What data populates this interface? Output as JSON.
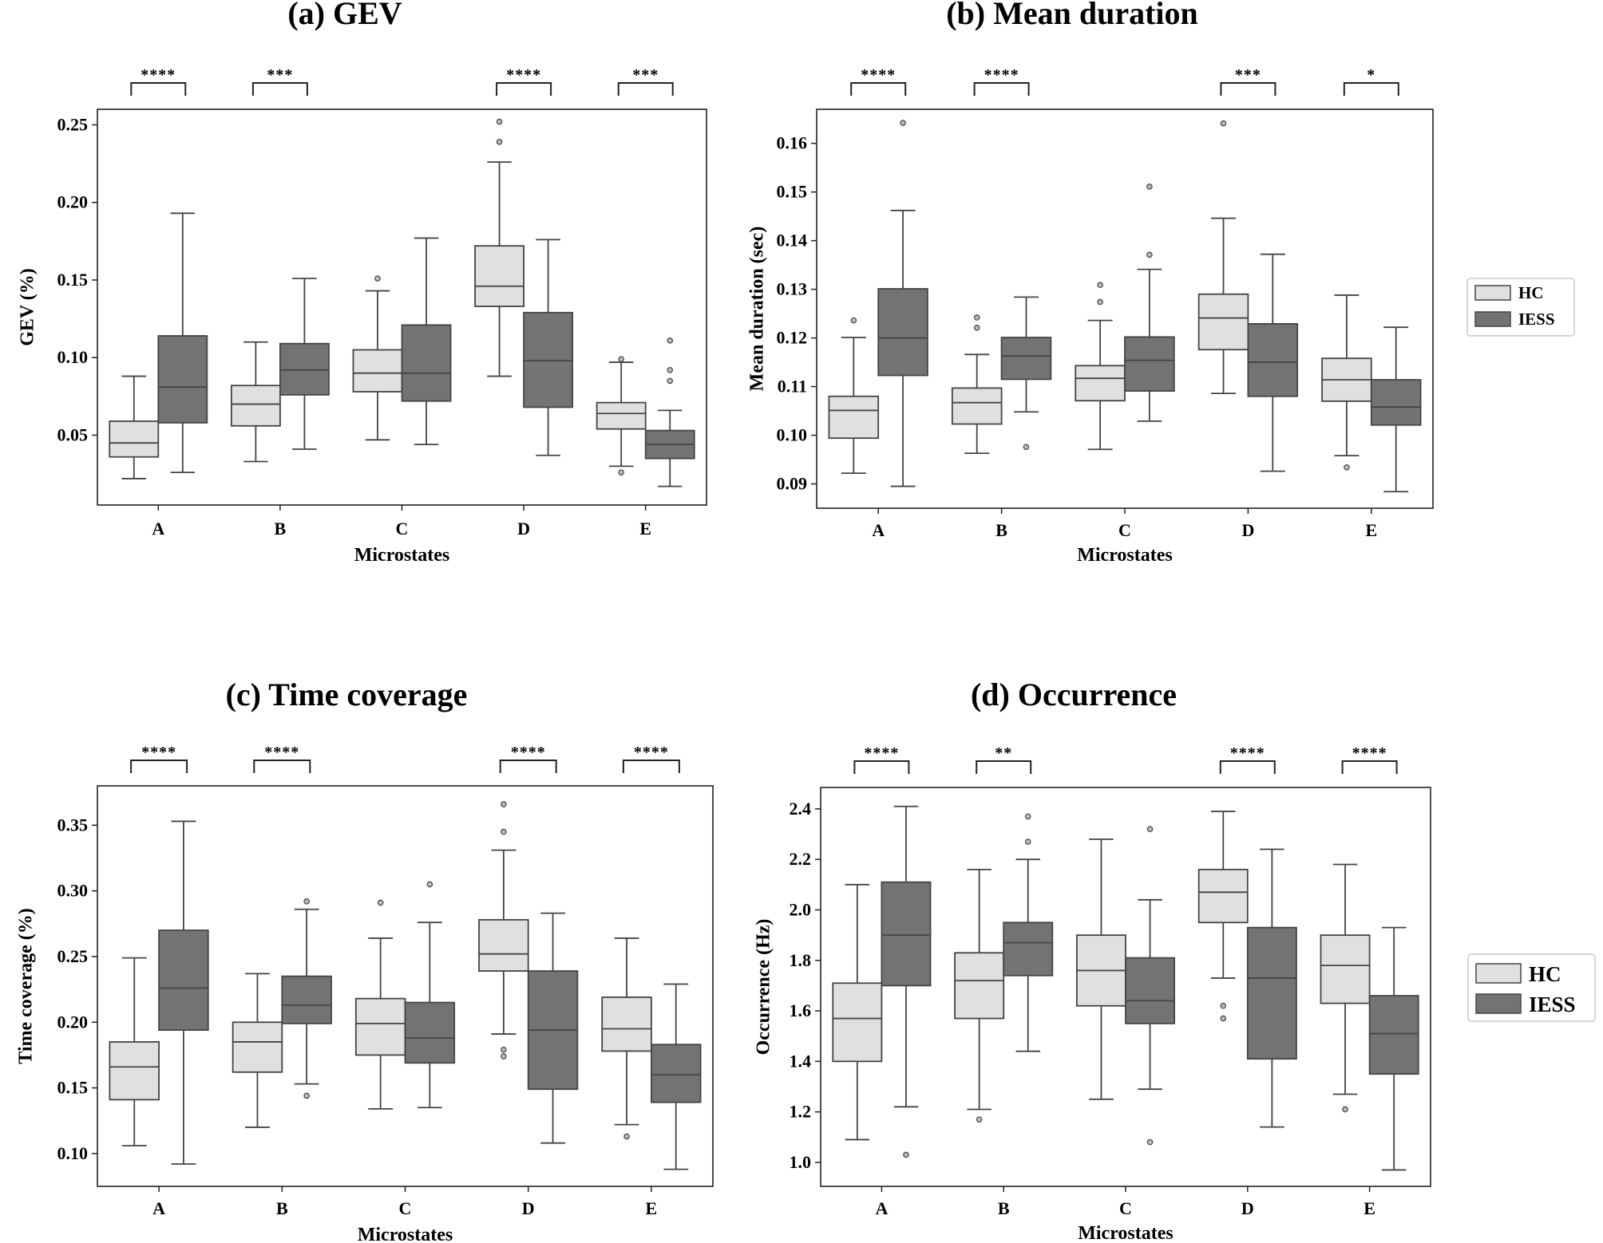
{
  "figure": {
    "groups": [
      "HC",
      "IESS"
    ],
    "colors": {
      "HC": "#e0e0e0",
      "IESS": "#737373",
      "line": "#444444"
    }
  },
  "chart_data": [
    {
      "type": "box",
      "title": "(a) GEV",
      "xlabel": "Microstates",
      "ylabel": "GEV (%)",
      "categories": [
        "A",
        "B",
        "C",
        "D",
        "E"
      ],
      "ylim": [
        0.005,
        0.26
      ],
      "yticks": [
        0.05,
        0.1,
        0.15,
        0.2,
        0.25
      ],
      "yticklabels": [
        "0.05",
        "0.10",
        "0.15",
        "0.20",
        "0.25"
      ],
      "significance": [
        "****",
        "***",
        "",
        "****",
        "***"
      ],
      "legend": "none",
      "series": [
        {
          "name": "HC",
          "boxes": [
            {
              "whislo": 0.022,
              "q1": 0.036,
              "med": 0.045,
              "q3": 0.059,
              "whishi": 0.088,
              "fliers": []
            },
            {
              "whislo": 0.033,
              "q1": 0.056,
              "med": 0.07,
              "q3": 0.082,
              "whishi": 0.11,
              "fliers": []
            },
            {
              "whislo": 0.047,
              "q1": 0.078,
              "med": 0.09,
              "q3": 0.105,
              "whishi": 0.143,
              "fliers": [
                0.151
              ]
            },
            {
              "whislo": 0.088,
              "q1": 0.133,
              "med": 0.146,
              "q3": 0.172,
              "whishi": 0.226,
              "fliers": [
                0.239,
                0.252
              ]
            },
            {
              "whislo": 0.03,
              "q1": 0.054,
              "med": 0.064,
              "q3": 0.071,
              "whishi": 0.097,
              "fliers": [
                0.026,
                0.099
              ]
            }
          ]
        },
        {
          "name": "IESS",
          "boxes": [
            {
              "whislo": 0.026,
              "q1": 0.058,
              "med": 0.081,
              "q3": 0.114,
              "whishi": 0.193,
              "fliers": []
            },
            {
              "whislo": 0.041,
              "q1": 0.076,
              "med": 0.092,
              "q3": 0.109,
              "whishi": 0.151,
              "fliers": []
            },
            {
              "whislo": 0.044,
              "q1": 0.072,
              "med": 0.09,
              "q3": 0.121,
              "whishi": 0.177,
              "fliers": []
            },
            {
              "whislo": 0.037,
              "q1": 0.068,
              "med": 0.098,
              "q3": 0.129,
              "whishi": 0.176,
              "fliers": []
            },
            {
              "whislo": 0.017,
              "q1": 0.035,
              "med": 0.044,
              "q3": 0.053,
              "whishi": 0.066,
              "fliers": [
                0.085,
                0.092,
                0.111
              ]
            }
          ]
        }
      ]
    },
    {
      "type": "box",
      "title": "(b) Mean duration",
      "xlabel": "Microstates",
      "ylabel": "Mean duration (sec)",
      "categories": [
        "A",
        "B",
        "C",
        "D",
        "E"
      ],
      "ylim": [
        0.085,
        0.167
      ],
      "yticks": [
        0.09,
        0.1,
        0.11,
        0.12,
        0.13,
        0.14,
        0.15,
        0.16
      ],
      "yticklabels": [
        "0.09",
        "0.10",
        "0.11",
        "0.12",
        "0.13",
        "0.14",
        "0.15",
        "0.16"
      ],
      "significance": [
        "****",
        "****",
        "",
        "***",
        "*"
      ],
      "legend": "outside-right",
      "legend_size": "small",
      "series": [
        {
          "name": "HC",
          "boxes": [
            {
              "whislo": 0.0922,
              "q1": 0.0994,
              "med": 0.1051,
              "q3": 0.108,
              "whishi": 0.1201,
              "fliers": [
                0.1236
              ]
            },
            {
              "whislo": 0.0963,
              "q1": 0.1023,
              "med": 0.1067,
              "q3": 0.1097,
              "whishi": 0.1166,
              "fliers": [
                0.1221,
                0.1242
              ]
            },
            {
              "whislo": 0.0971,
              "q1": 0.1071,
              "med": 0.1117,
              "q3": 0.1143,
              "whishi": 0.1236,
              "fliers": [
                0.1274,
                0.1309
              ]
            },
            {
              "whislo": 0.1086,
              "q1": 0.1176,
              "med": 0.1241,
              "q3": 0.129,
              "whishi": 0.1446,
              "fliers": [
                0.1641
              ]
            },
            {
              "whislo": 0.0958,
              "q1": 0.107,
              "med": 0.1114,
              "q3": 0.1158,
              "whishi": 0.1288,
              "fliers": [
                0.0934
              ]
            }
          ]
        },
        {
          "name": "IESS",
          "boxes": [
            {
              "whislo": 0.0895,
              "q1": 0.1123,
              "med": 0.12,
              "q3": 0.1301,
              "whishi": 0.1462,
              "fliers": [
                0.1642
              ]
            },
            {
              "whislo": 0.1048,
              "q1": 0.1115,
              "med": 0.1163,
              "q3": 0.1201,
              "whishi": 0.1284,
              "fliers": [
                0.0976
              ]
            },
            {
              "whislo": 0.1029,
              "q1": 0.1091,
              "med": 0.1154,
              "q3": 0.1202,
              "whishi": 0.1341,
              "fliers": [
                0.1371,
                0.1511
              ]
            },
            {
              "whislo": 0.0926,
              "q1": 0.108,
              "med": 0.115,
              "q3": 0.1229,
              "whishi": 0.1372,
              "fliers": []
            },
            {
              "whislo": 0.0884,
              "q1": 0.1021,
              "med": 0.1058,
              "q3": 0.1114,
              "whishi": 0.1222,
              "fliers": []
            }
          ]
        }
      ]
    },
    {
      "type": "box",
      "title": "(c) Time coverage",
      "xlabel": "Microstates",
      "ylabel": "Time coverage (%)",
      "categories": [
        "A",
        "B",
        "C",
        "D",
        "E"
      ],
      "ylim": [
        0.075,
        0.38
      ],
      "yticks": [
        0.1,
        0.15,
        0.2,
        0.25,
        0.3,
        0.35
      ],
      "yticklabels": [
        "0.10",
        "0.15",
        "0.20",
        "0.25",
        "0.30",
        "0.35"
      ],
      "significance": [
        "****",
        "****",
        "",
        "****",
        "****"
      ],
      "legend": "none",
      "series": [
        {
          "name": "HC",
          "boxes": [
            {
              "whislo": 0.106,
              "q1": 0.141,
              "med": 0.166,
              "q3": 0.185,
              "whishi": 0.249,
              "fliers": []
            },
            {
              "whislo": 0.12,
              "q1": 0.162,
              "med": 0.185,
              "q3": 0.2,
              "whishi": 0.237,
              "fliers": []
            },
            {
              "whislo": 0.134,
              "q1": 0.175,
              "med": 0.199,
              "q3": 0.218,
              "whishi": 0.264,
              "fliers": [
                0.291
              ]
            },
            {
              "whislo": 0.191,
              "q1": 0.239,
              "med": 0.252,
              "q3": 0.278,
              "whishi": 0.331,
              "fliers": [
                0.174,
                0.179,
                0.345,
                0.366
              ]
            },
            {
              "whislo": 0.122,
              "q1": 0.178,
              "med": 0.195,
              "q3": 0.219,
              "whishi": 0.264,
              "fliers": [
                0.113
              ]
            }
          ]
        },
        {
          "name": "IESS",
          "boxes": [
            {
              "whislo": 0.092,
              "q1": 0.194,
              "med": 0.226,
              "q3": 0.27,
              "whishi": 0.353,
              "fliers": []
            },
            {
              "whislo": 0.153,
              "q1": 0.199,
              "med": 0.213,
              "q3": 0.235,
              "whishi": 0.286,
              "fliers": [
                0.144,
                0.292
              ]
            },
            {
              "whislo": 0.135,
              "q1": 0.169,
              "med": 0.188,
              "q3": 0.215,
              "whishi": 0.276,
              "fliers": [
                0.305
              ]
            },
            {
              "whislo": 0.108,
              "q1": 0.149,
              "med": 0.194,
              "q3": 0.239,
              "whishi": 0.283,
              "fliers": []
            },
            {
              "whislo": 0.088,
              "q1": 0.139,
              "med": 0.16,
              "q3": 0.183,
              "whishi": 0.229,
              "fliers": []
            }
          ]
        }
      ]
    },
    {
      "type": "box",
      "title": "(d) Occurrence",
      "xlabel": "Microstates",
      "ylabel": "Occurrence (Hz)",
      "categories": [
        "A",
        "B",
        "C",
        "D",
        "E"
      ],
      "ylim": [
        0.905,
        2.485
      ],
      "yticks": [
        1.0,
        1.2,
        1.4,
        1.6,
        1.8,
        2.0,
        2.2,
        2.4
      ],
      "yticklabels": [
        "1.0",
        "1.2",
        "1.4",
        "1.6",
        "1.8",
        "2.0",
        "2.2",
        "2.4"
      ],
      "significance": [
        "****",
        "**",
        "",
        "****",
        "****"
      ],
      "legend": "outside-right",
      "legend_size": "large",
      "series": [
        {
          "name": "HC",
          "boxes": [
            {
              "whislo": 1.09,
              "q1": 1.4,
              "med": 1.57,
              "q3": 1.71,
              "whishi": 2.1,
              "fliers": []
            },
            {
              "whislo": 1.21,
              "q1": 1.57,
              "med": 1.72,
              "q3": 1.83,
              "whishi": 2.16,
              "fliers": [
                1.17
              ]
            },
            {
              "whislo": 1.25,
              "q1": 1.62,
              "med": 1.76,
              "q3": 1.9,
              "whishi": 2.28,
              "fliers": []
            },
            {
              "whislo": 1.73,
              "q1": 1.95,
              "med": 2.07,
              "q3": 2.16,
              "whishi": 2.39,
              "fliers": [
                1.57,
                1.62
              ]
            },
            {
              "whislo": 1.27,
              "q1": 1.63,
              "med": 1.78,
              "q3": 1.9,
              "whishi": 2.18,
              "fliers": [
                1.21
              ]
            }
          ]
        },
        {
          "name": "IESS",
          "boxes": [
            {
              "whislo": 1.22,
              "q1": 1.7,
              "med": 1.9,
              "q3": 2.11,
              "whishi": 2.41,
              "fliers": [
                1.03
              ]
            },
            {
              "whislo": 1.44,
              "q1": 1.74,
              "med": 1.87,
              "q3": 1.95,
              "whishi": 2.2,
              "fliers": [
                2.27,
                2.37
              ]
            },
            {
              "whislo": 1.29,
              "q1": 1.55,
              "med": 1.64,
              "q3": 1.81,
              "whishi": 2.04,
              "fliers": [
                1.08,
                2.32
              ]
            },
            {
              "whislo": 1.14,
              "q1": 1.41,
              "med": 1.73,
              "q3": 1.93,
              "whishi": 2.24,
              "fliers": []
            },
            {
              "whislo": 0.97,
              "q1": 1.35,
              "med": 1.51,
              "q3": 1.66,
              "whishi": 1.93,
              "fliers": []
            }
          ]
        }
      ]
    }
  ]
}
